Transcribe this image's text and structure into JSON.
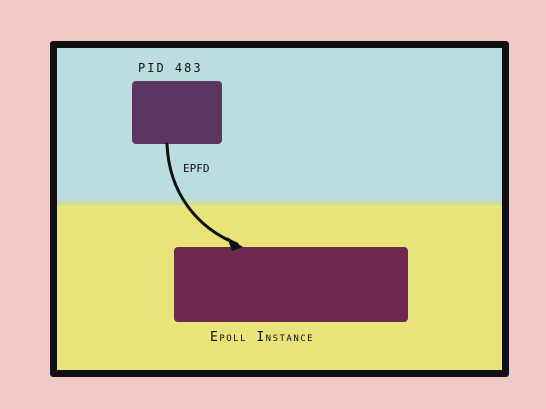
{
  "diagram": {
    "process_label": "PID 483",
    "arrow_label": "EPFD",
    "epoll_label": "Epoll Instance"
  },
  "colors": {
    "background": "#f1c9c7",
    "border": "#111111",
    "sky": "#bcdde0",
    "ground": "#e8e47a",
    "process_box": "#5a3661",
    "epoll_box": "#6e2a4e"
  }
}
